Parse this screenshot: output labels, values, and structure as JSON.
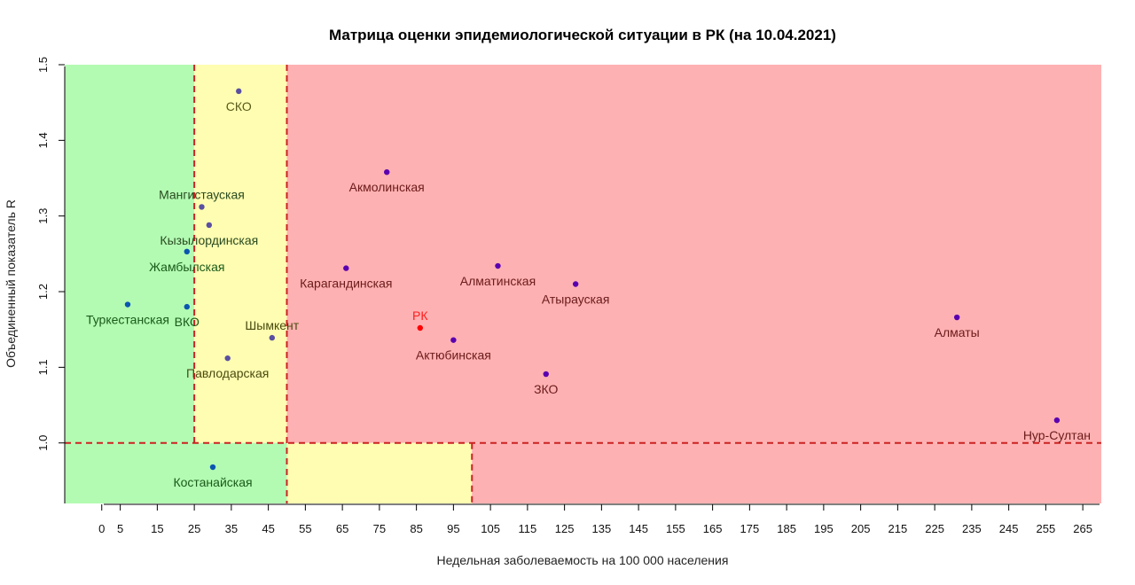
{
  "chart_data": {
    "type": "scatter",
    "title": "Матрица оценки эпидемиологической ситуации в РК (на 10.04.2021)",
    "xlabel": "Недельная заболеваемость на 100 000 населения",
    "ylabel": "Объединенный показатель R",
    "xlim": [
      -10,
      270
    ],
    "ylim": [
      0.92,
      1.5
    ],
    "x_ticks": [
      0,
      5,
      15,
      25,
      35,
      45,
      55,
      65,
      75,
      85,
      95,
      105,
      115,
      125,
      135,
      145,
      155,
      165,
      175,
      185,
      195,
      205,
      215,
      225,
      235,
      245,
      255,
      265
    ],
    "x_tick_labels": [
      "0",
      "5",
      "15",
      "25",
      "35",
      "45",
      "55",
      "65",
      "75",
      "85",
      "95",
      "105",
      "115",
      "125",
      "135",
      "145",
      "155",
      "165",
      "175",
      "185",
      "195",
      "205",
      "215",
      "225",
      "235",
      "245",
      "255",
      "265"
    ],
    "y_ticks": [
      1.0,
      1.1,
      1.2,
      1.3,
      1.4,
      1.5
    ],
    "y_tick_labels": [
      "1.0",
      "1.1",
      "1.2",
      "1.3",
      "1.4",
      "1.5"
    ],
    "grid": false,
    "zones": [
      {
        "x": [
          -10,
          25
        ],
        "y": [
          1.0,
          1.5
        ],
        "color": "#b3fbb3"
      },
      {
        "x": [
          25,
          50
        ],
        "y": [
          1.0,
          1.5
        ],
        "color": "#fefdb1"
      },
      {
        "x": [
          50,
          270
        ],
        "y": [
          1.0,
          1.5
        ],
        "color": "#feb1b2"
      },
      {
        "x": [
          -10,
          50
        ],
        "y": [
          0.92,
          1.0
        ],
        "color": "#b3fbb3"
      },
      {
        "x": [
          50,
          100
        ],
        "y": [
          0.92,
          1.0
        ],
        "color": "#fefdb1"
      },
      {
        "x": [
          100,
          270
        ],
        "y": [
          0.92,
          1.0
        ],
        "color": "#feb1b2"
      }
    ],
    "thresholds": [
      {
        "orientation": "vertical",
        "value": 25,
        "range": [
          1.0,
          1.5
        ]
      },
      {
        "orientation": "vertical",
        "value": 50,
        "range": [
          0.92,
          1.5
        ]
      },
      {
        "orientation": "vertical",
        "value": 100,
        "range": [
          0.92,
          1.0
        ]
      },
      {
        "orientation": "horizontal",
        "value": 1.0,
        "range": [
          -10,
          270
        ]
      }
    ],
    "threshold_color": "#cc2222",
    "points": [
      {
        "name": "СКО",
        "x": 37,
        "y": 1.465,
        "point_color": "#5a4fa0",
        "label_color": "#5a5a1a",
        "label_pos": "below"
      },
      {
        "name": "Акмолинская",
        "x": 77,
        "y": 1.358,
        "point_color": "#5a00b0",
        "label_color": "#6b1a1a",
        "label_pos": "below"
      },
      {
        "name": "Мангистауская",
        "x": 27,
        "y": 1.312,
        "point_color": "#5a4fa0",
        "label_color": "#2a4a20",
        "label_pos": "above"
      },
      {
        "name": "Кызылординская",
        "x": 29,
        "y": 1.288,
        "point_color": "#5a4fa0",
        "label_color": "#2a4a20",
        "label_pos": "below"
      },
      {
        "name": "Жамбылская",
        "x": 23,
        "y": 1.253,
        "point_color": "#0a56b0",
        "label_color": "#1a5a1a",
        "label_pos": "below"
      },
      {
        "name": "Карагандинская",
        "x": 66,
        "y": 1.231,
        "point_color": "#5a00b0",
        "label_color": "#6b1a1a",
        "label_pos": "below"
      },
      {
        "name": "Алматинская",
        "x": 107,
        "y": 1.234,
        "point_color": "#5a00b0",
        "label_color": "#6b1a1a",
        "label_pos": "below"
      },
      {
        "name": "Атырауская",
        "x": 128,
        "y": 1.21,
        "point_color": "#5a00b0",
        "label_color": "#6b1a1a",
        "label_pos": "below"
      },
      {
        "name": "Туркестанская",
        "x": 7,
        "y": 1.183,
        "point_color": "#0a56b0",
        "label_color": "#1a5a1a",
        "label_pos": "below"
      },
      {
        "name": "ВКО",
        "x": 23,
        "y": 1.18,
        "point_color": "#0a56b0",
        "label_color": "#1a5a1a",
        "label_pos": "below"
      },
      {
        "name": "РК",
        "x": 86,
        "y": 1.152,
        "point_color": "#ff0000",
        "label_color": "#ff2020",
        "label_pos": "above"
      },
      {
        "name": "Алматы",
        "x": 231,
        "y": 1.166,
        "point_color": "#5a00b0",
        "label_color": "#6b1a1a",
        "label_pos": "below"
      },
      {
        "name": "Шымкент",
        "x": 46,
        "y": 1.139,
        "point_color": "#5a4fa0",
        "label_color": "#4a4a10",
        "label_pos": "above"
      },
      {
        "name": "Актюбинская",
        "x": 95,
        "y": 1.136,
        "point_color": "#5a00b0",
        "label_color": "#6b1a1a",
        "label_pos": "below"
      },
      {
        "name": "Павлодарская",
        "x": 34,
        "y": 1.112,
        "point_color": "#5a4fa0",
        "label_color": "#4a4a10",
        "label_pos": "below"
      },
      {
        "name": "ЗКО",
        "x": 120,
        "y": 1.091,
        "point_color": "#5a00b0",
        "label_color": "#6b1a1a",
        "label_pos": "below"
      },
      {
        "name": "Нур-Султан",
        "x": 258,
        "y": 1.03,
        "point_color": "#5a00b0",
        "label_color": "#6b1a1a",
        "label_pos": "below"
      },
      {
        "name": "Костанайская",
        "x": 30,
        "y": 0.968,
        "point_color": "#0a56b0",
        "label_color": "#1a5a1a",
        "label_pos": "below"
      }
    ]
  }
}
